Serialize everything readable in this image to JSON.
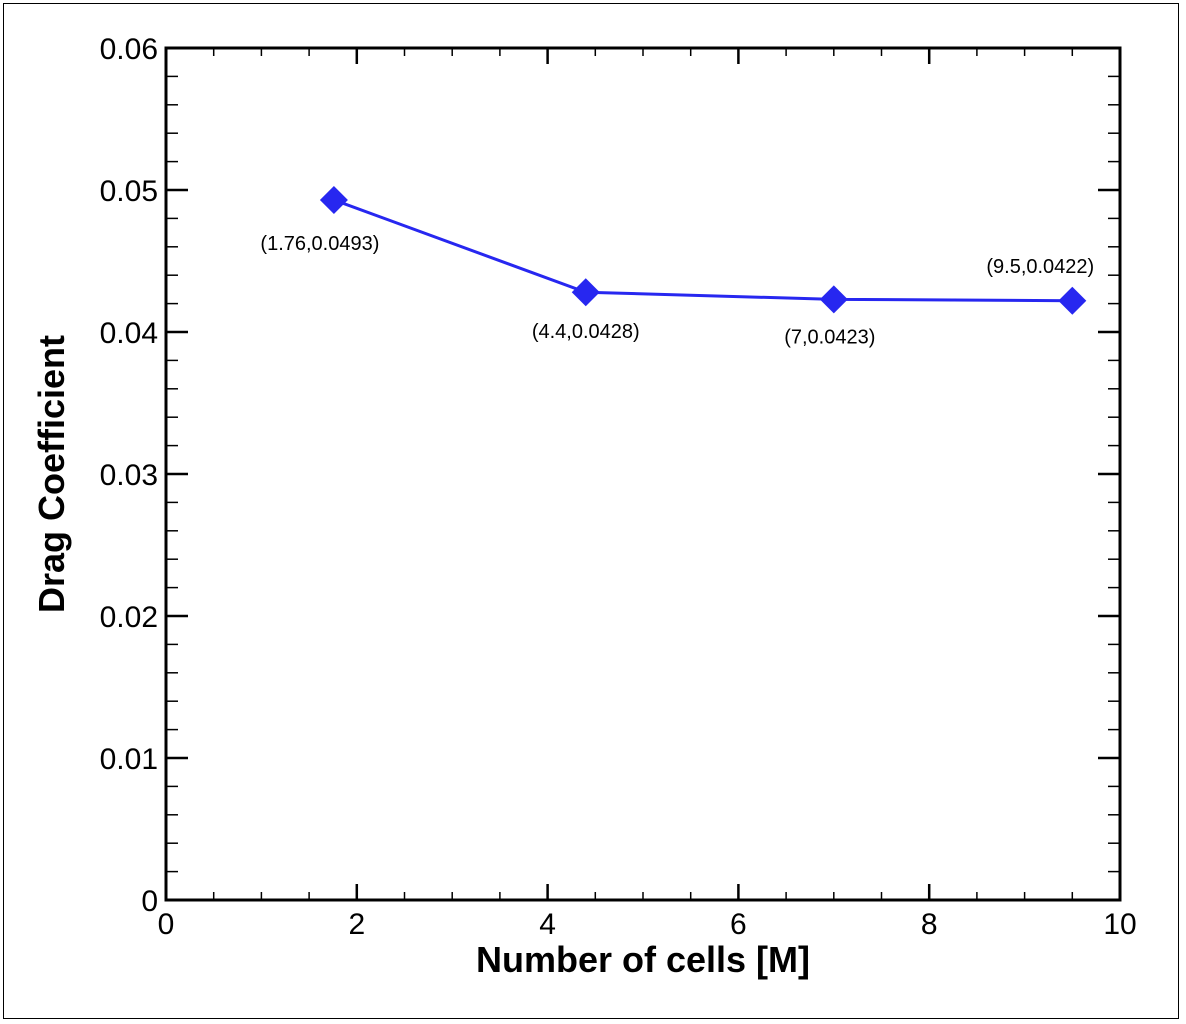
{
  "chart_data": {
    "type": "line",
    "title": "",
    "xlabel": "Number of cells [M]",
    "ylabel": "Drag Coefficient",
    "xlim": [
      0,
      10
    ],
    "ylim": [
      0,
      0.06
    ],
    "x_ticks": [
      0,
      2,
      4,
      6,
      8,
      10
    ],
    "x_tick_labels": [
      "0",
      "2",
      "4",
      "6",
      "8",
      "10"
    ],
    "y_ticks": [
      0,
      0.01,
      0.02,
      0.03,
      0.04,
      0.05,
      0.06
    ],
    "y_tick_labels": [
      "0",
      "0.01",
      "0.02",
      "0.03",
      "0.04",
      "0.05",
      "0.06"
    ],
    "grid": false,
    "series": [
      {
        "name": "Drag Coefficient",
        "color": "#2727f0",
        "marker": "diamond",
        "x": [
          1.76,
          4.4,
          7,
          9.5
        ],
        "y": [
          0.0493,
          0.0428,
          0.0423,
          0.0422
        ],
        "labels": [
          "(1.76,0.0493)",
          "(4.4,0.0428)",
          "(7,0.0423)",
          "(9.5,0.0422)"
        ]
      }
    ]
  }
}
